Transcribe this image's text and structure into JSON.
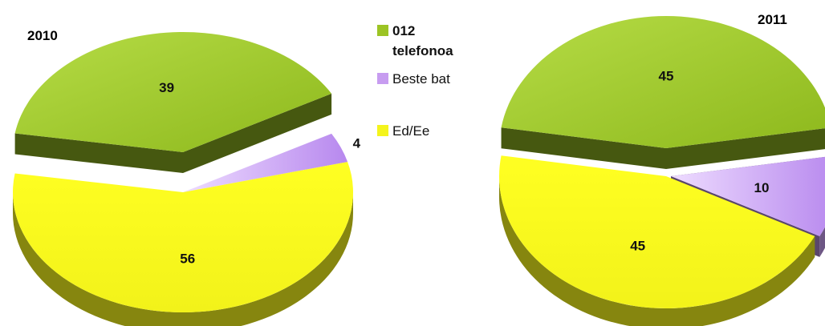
{
  "colors": {
    "telefonoa": "#9cc424",
    "beste_bat": "#c79cf0",
    "ed_ee": "#f4f41c"
  },
  "legend": {
    "items": [
      {
        "label_line1": "012",
        "label_line2": "telefonoa",
        "color": "#9cc424"
      },
      {
        "label_line1": "Beste bat",
        "label_line2": "",
        "color": "#c79cf0"
      },
      {
        "label_line1": "Ed/Ee",
        "label_line2": "",
        "color": "#f4f41c"
      }
    ]
  },
  "chart_data": [
    {
      "type": "pie",
      "title": "2010",
      "categories": [
        "012 telefonoa",
        "Beste bat",
        "Ed/Ee"
      ],
      "values": [
        39,
        4,
        56
      ],
      "labels": [
        "39",
        "4",
        "56"
      ]
    },
    {
      "type": "pie",
      "title": "2011",
      "categories": [
        "012 telefonoa",
        "Beste bat",
        "Ed/Ee"
      ],
      "values": [
        45,
        10,
        45
      ],
      "labels": [
        "45",
        "10",
        "45"
      ]
    }
  ]
}
